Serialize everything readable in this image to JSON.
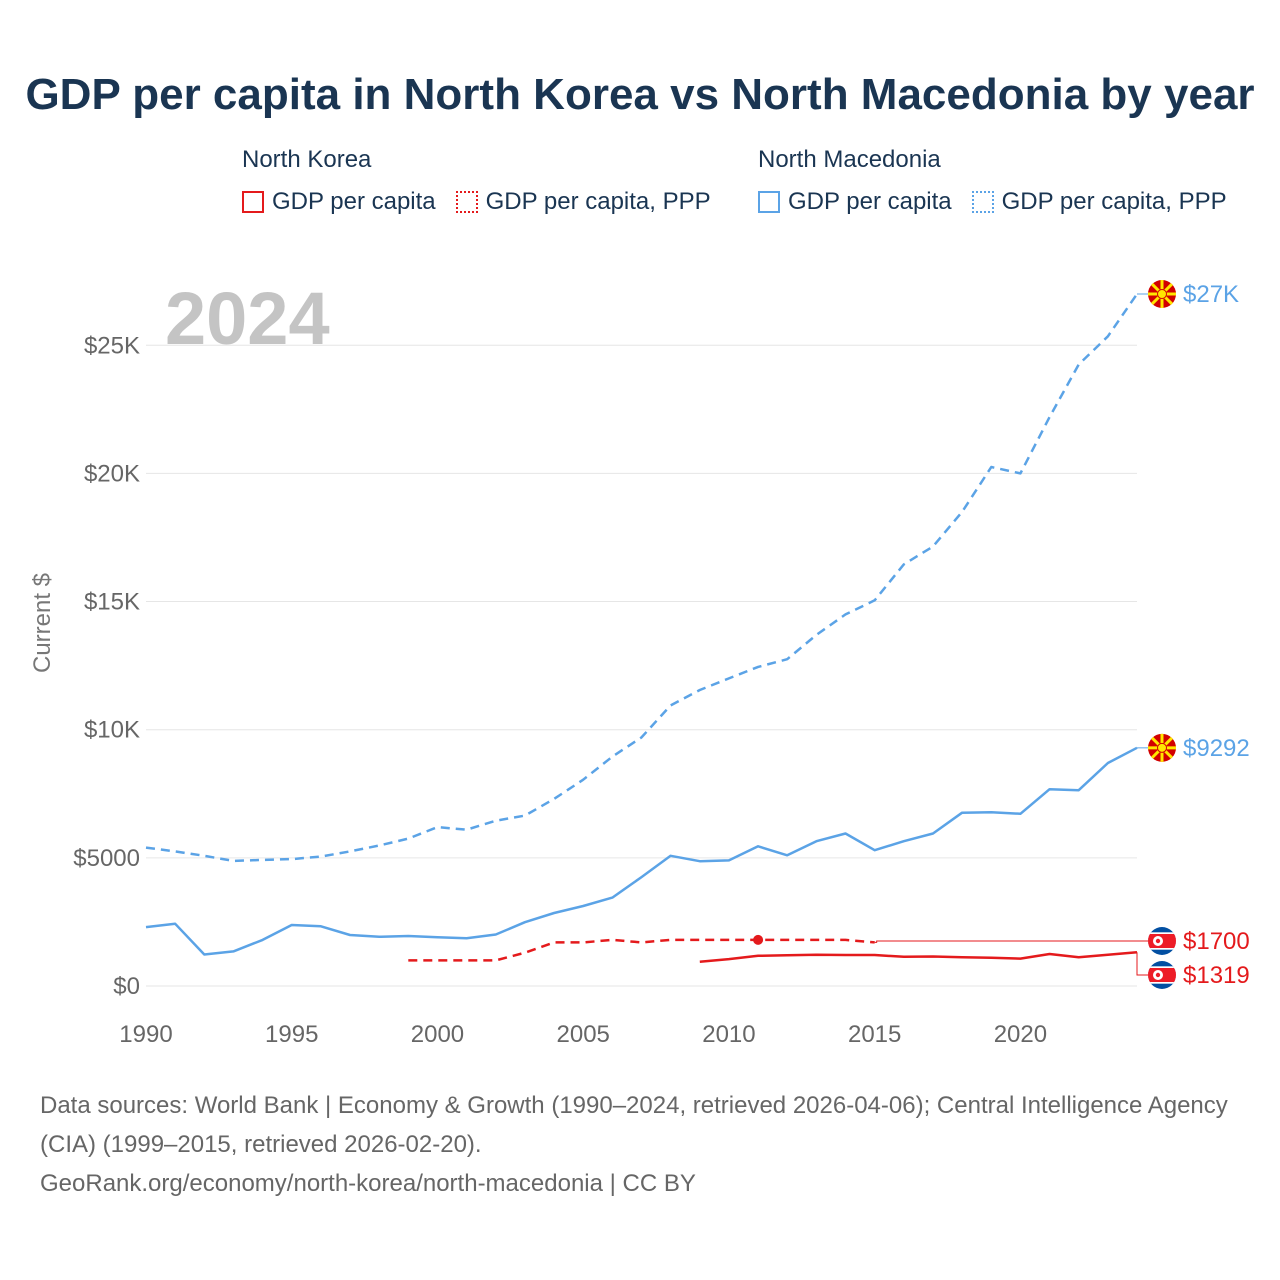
{
  "title": "GDP per capita in North Korea vs North Macedonia by year",
  "legend": {
    "groups": [
      {
        "name": "North Korea",
        "color": "#e41a1c",
        "items": [
          {
            "label": "GDP per capita",
            "style": "solid"
          },
          {
            "label": "GDP per capita, PPP",
            "style": "dotted"
          }
        ]
      },
      {
        "name": "North Macedonia",
        "color": "#5ba3e6",
        "items": [
          {
            "label": "GDP per capita",
            "style": "solid"
          },
          {
            "label": "GDP per capita, PPP",
            "style": "dotted"
          }
        ]
      }
    ]
  },
  "footer": {
    "line1": "Data sources: World Bank | Economy & Growth (1990–2024, retrieved 2026-04-06); Central Intelligence Agency (CIA) (1999–2015, retrieved 2026-02-20).",
    "line2": "GeoRank.org/economy/north-korea/north-macedonia | CC BY"
  },
  "chart_data": {
    "type": "line",
    "title": "GDP per capita in North Korea vs North Macedonia by year",
    "year_label": "2024",
    "ylabel": "Current $",
    "xlim": [
      1990,
      2024
    ],
    "ylim": [
      0,
      27000
    ],
    "x_ticks": [
      1990,
      1995,
      2000,
      2005,
      2010,
      2015,
      2020
    ],
    "y_ticks": [
      {
        "value": 0,
        "label": "$0"
      },
      {
        "value": 5000,
        "label": "$5000"
      },
      {
        "value": 10000,
        "label": "$10K"
      },
      {
        "value": 15000,
        "label": "$15K"
      },
      {
        "value": 20000,
        "label": "$20K"
      },
      {
        "value": 25000,
        "label": "$25K"
      }
    ],
    "series": [
      {
        "name": "North Macedonia GDP per capita, PPP",
        "color": "#5ba3e6",
        "dashed": true,
        "x": [
          1990,
          1991,
          1992,
          1993,
          1994,
          1995,
          1996,
          1997,
          1998,
          1999,
          2000,
          2001,
          2002,
          2003,
          2004,
          2005,
          2006,
          2007,
          2008,
          2009,
          2010,
          2011,
          2012,
          2013,
          2014,
          2015,
          2016,
          2017,
          2018,
          2019,
          2020,
          2021,
          2022,
          2023,
          2024
        ],
        "values": [
          5400,
          5250,
          5080,
          4880,
          4920,
          4950,
          5050,
          5250,
          5480,
          5750,
          6200,
          6100,
          6450,
          6650,
          7300,
          8050,
          8950,
          9700,
          10950,
          11550,
          12000,
          12450,
          12750,
          13700,
          14500,
          15050,
          16450,
          17150,
          18500,
          20250,
          20000,
          22200,
          24250,
          25350,
          27000
        ]
      },
      {
        "name": "North Macedonia GDP per capita",
        "color": "#5ba3e6",
        "dashed": false,
        "x": [
          1990,
          1991,
          1992,
          1993,
          1994,
          1995,
          1996,
          1997,
          1998,
          1999,
          2000,
          2001,
          2002,
          2003,
          2004,
          2005,
          2006,
          2007,
          2008,
          2009,
          2010,
          2011,
          2012,
          2013,
          2014,
          2015,
          2016,
          2017,
          2018,
          2019,
          2020,
          2021,
          2022,
          2023,
          2024
        ],
        "values": [
          2300,
          2430,
          1230,
          1350,
          1800,
          2380,
          2330,
          1990,
          1920,
          1950,
          1900,
          1860,
          2010,
          2490,
          2850,
          3120,
          3450,
          4250,
          5080,
          4870,
          4900,
          5450,
          5100,
          5650,
          5950,
          5300,
          5650,
          5950,
          6760,
          6780,
          6720,
          7680,
          7640,
          8700,
          9292
        ]
      },
      {
        "name": "North Korea GDP per capita, PPP",
        "color": "#e41a1c",
        "dashed": true,
        "x": [
          1999,
          2000,
          2001,
          2002,
          2003,
          2004,
          2005,
          2006,
          2007,
          2008,
          2009,
          2010,
          2011,
          2012,
          2013,
          2014,
          2015
        ],
        "values": [
          1000,
          1000,
          1000,
          1000,
          1300,
          1700,
          1700,
          1800,
          1700,
          1800,
          1800,
          1800,
          1800,
          1800,
          1800,
          1800,
          1700
        ]
      },
      {
        "name": "North Korea GDP per capita",
        "color": "#e41a1c",
        "dashed": false,
        "x": [
          2009,
          2010,
          2011,
          2012,
          2013,
          2014,
          2015,
          2016,
          2017,
          2018,
          2019,
          2020,
          2021,
          2022,
          2023,
          2024
        ],
        "values": [
          950,
          1050,
          1180,
          1200,
          1220,
          1210,
          1210,
          1140,
          1150,
          1120,
          1100,
          1070,
          1250,
          1120,
          1220,
          1319
        ]
      }
    ],
    "marker": {
      "series": "North Korea GDP per capita, PPP",
      "x": 2011,
      "y": 1800
    },
    "end_labels": [
      {
        "series": "North Macedonia GDP per capita, PPP",
        "text": "$27K",
        "country": "North Macedonia",
        "color": "#5ba3e6"
      },
      {
        "series": "North Macedonia GDP per capita",
        "text": "$9292",
        "country": "North Macedonia",
        "color": "#5ba3e6"
      },
      {
        "series": "North Korea GDP per capita, PPP",
        "text": "$1700",
        "country": "North Korea",
        "color": "#e41a1c"
      },
      {
        "series": "North Korea GDP per capita",
        "text": "$1319",
        "country": "North Korea",
        "color": "#e41a1c"
      }
    ]
  }
}
